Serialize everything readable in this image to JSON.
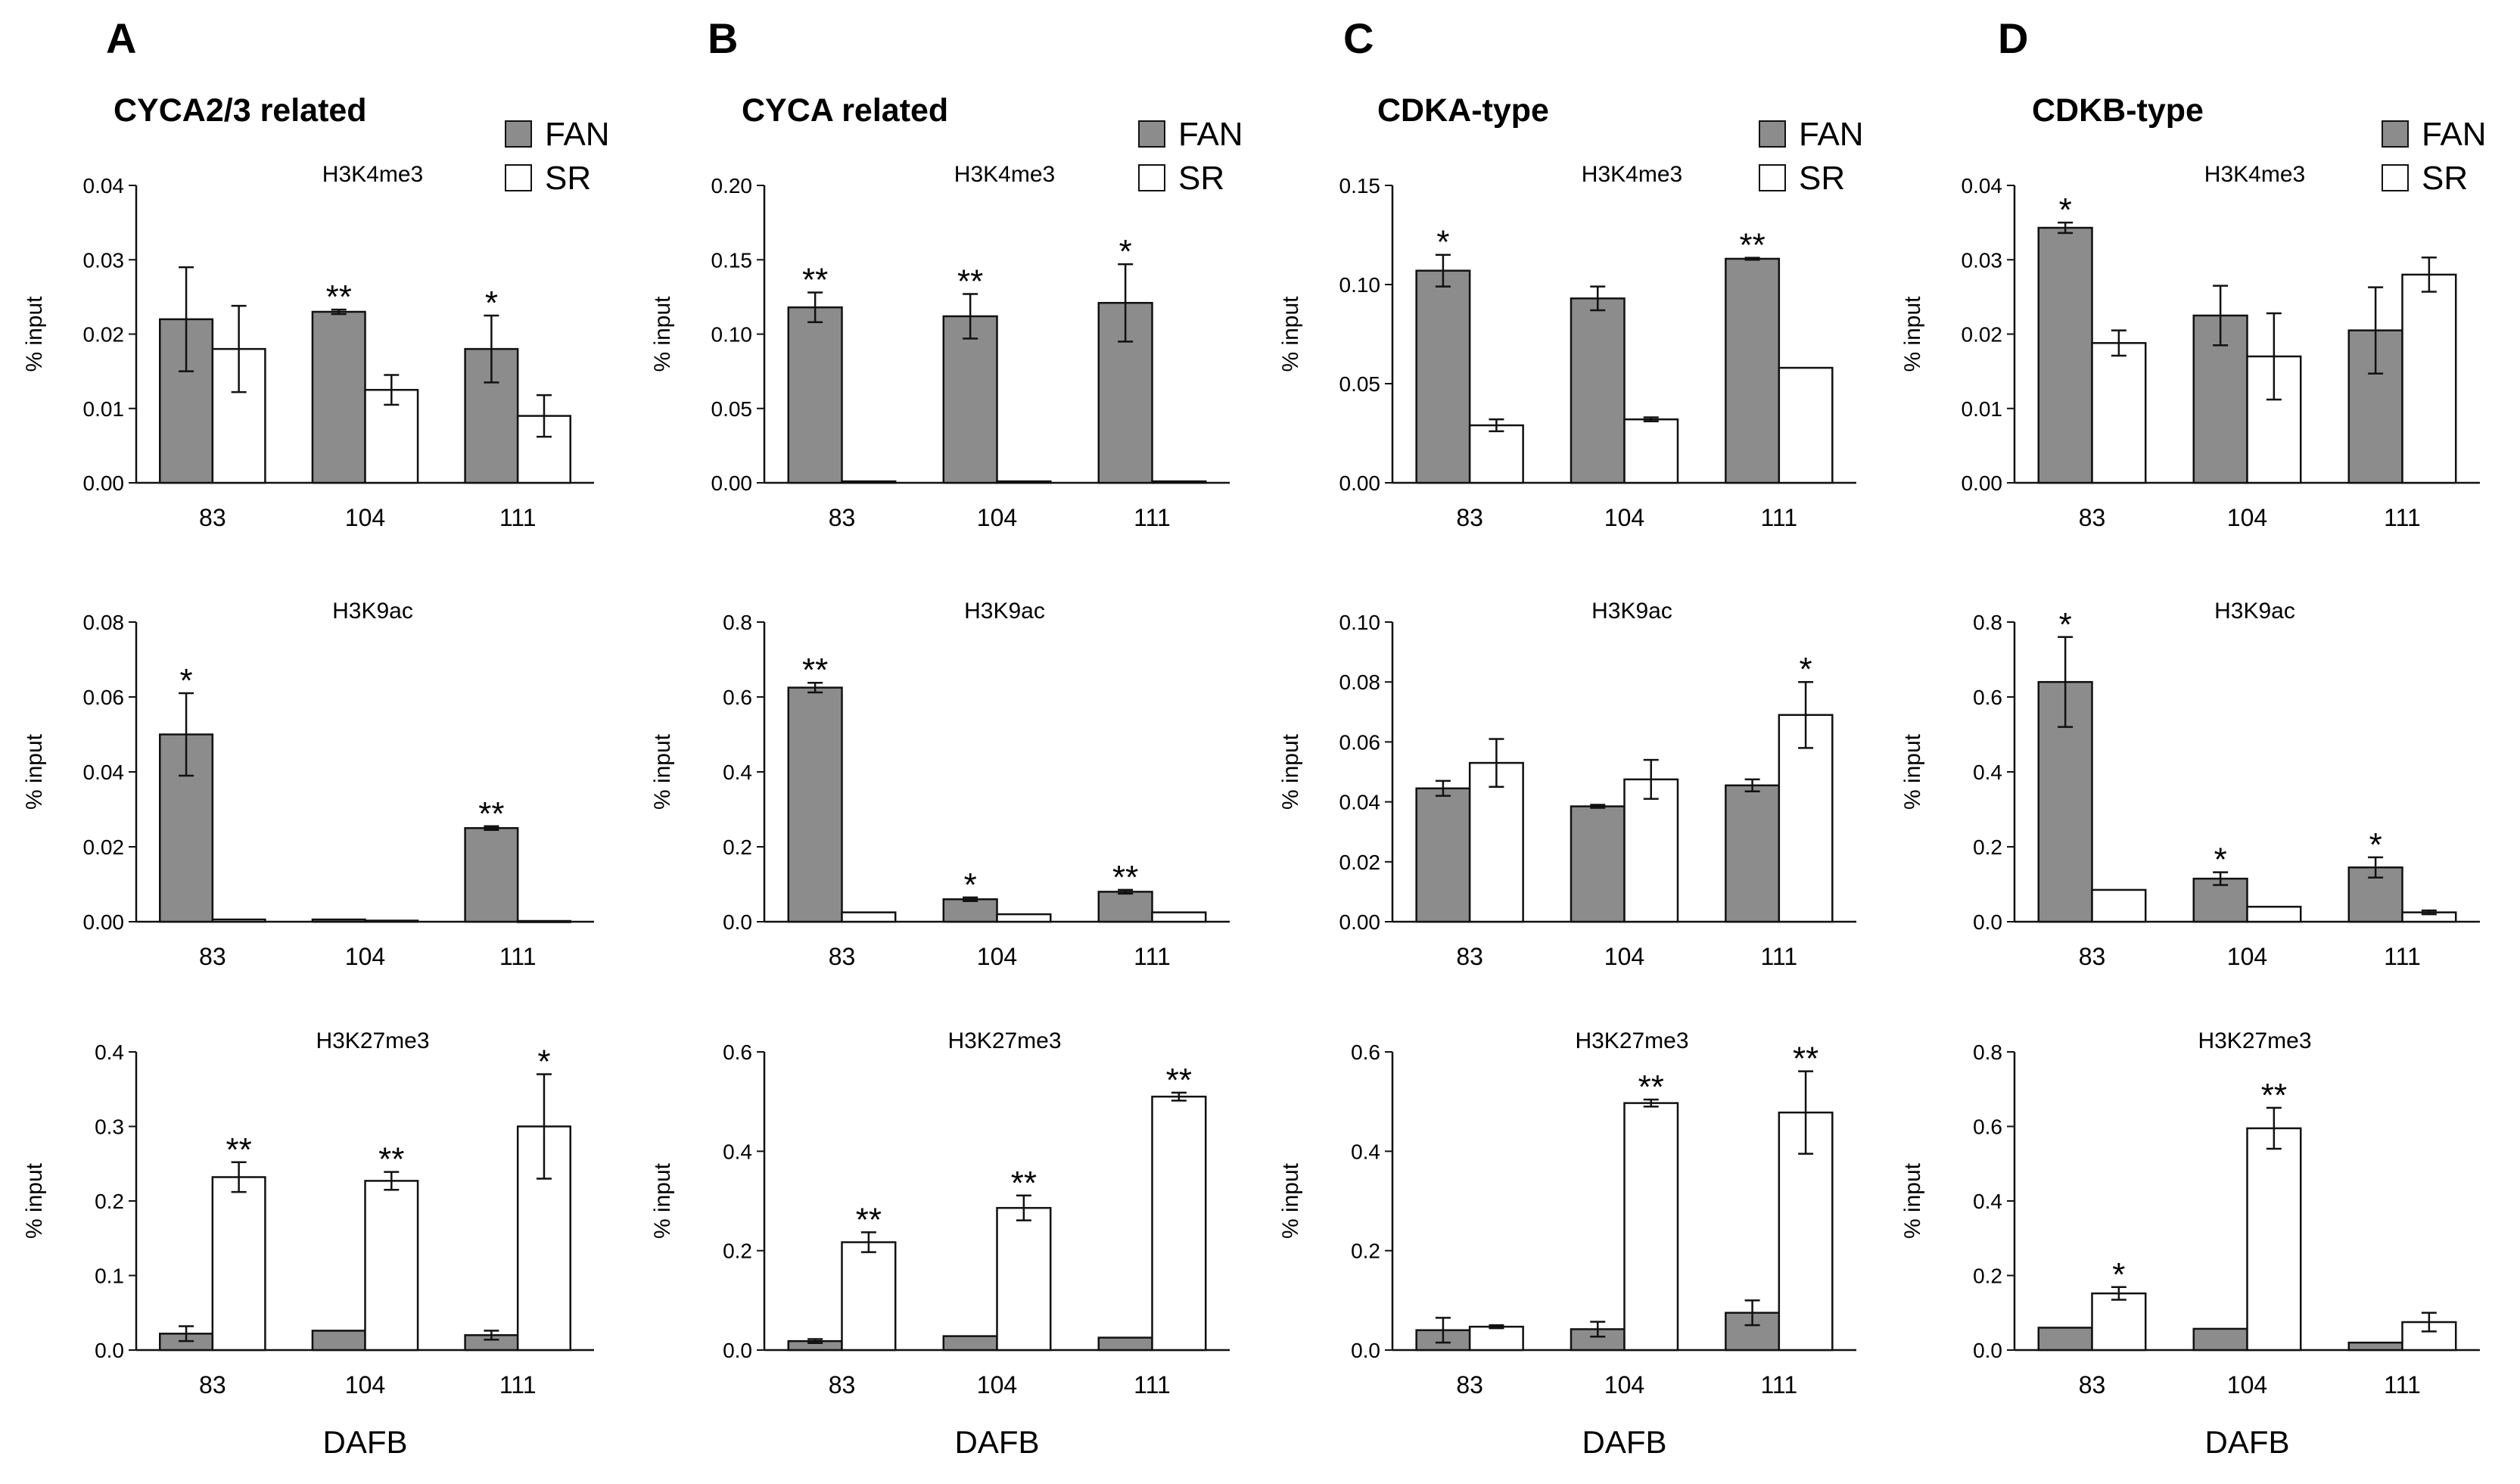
{
  "legend": {
    "fan_label": "FAN",
    "sr_label": "SR"
  },
  "shared": {
    "y_label": "% input",
    "x_label": "DAFB",
    "categories": [
      "83",
      "104",
      "111"
    ],
    "series_names": [
      "FAN",
      "SR"
    ]
  },
  "colors": {
    "fan": "#8c8c8c",
    "sr": "#ffffff",
    "stroke": "#111111"
  },
  "panels": [
    {
      "letter": "A",
      "title": "CYCA2/3 related"
    },
    {
      "letter": "B",
      "title": "CYCA related"
    },
    {
      "letter": "C",
      "title": "CDKA-type"
    },
    {
      "letter": "D",
      "title": "CDKB-type"
    }
  ],
  "chart_data": [
    {
      "type": "bar",
      "panel": "A",
      "title": "H3K4me3",
      "ylabel": "% input",
      "categories": [
        "83",
        "104",
        "111"
      ],
      "ylim": [
        0,
        0.04
      ],
      "yticks": [
        "0.00",
        "0.01",
        "0.02",
        "0.03",
        "0.04"
      ],
      "series": [
        {
          "name": "FAN",
          "values": [
            0.022,
            0.023,
            0.018
          ],
          "errors": [
            0.007,
            0.0003,
            0.0045
          ]
        },
        {
          "name": "SR",
          "values": [
            0.018,
            0.0125,
            0.009
          ],
          "errors": [
            0.0058,
            0.002,
            0.0028
          ]
        }
      ],
      "annotations": [
        "",
        "**",
        "*"
      ]
    },
    {
      "type": "bar",
      "panel": "A",
      "title": "H3K9ac",
      "ylabel": "% input",
      "categories": [
        "83",
        "104",
        "111"
      ],
      "ylim": [
        0,
        0.08
      ],
      "yticks": [
        "0.00",
        "0.02",
        "0.04",
        "0.06",
        "0.08"
      ],
      "series": [
        {
          "name": "FAN",
          "values": [
            0.05,
            0.0006,
            0.025
          ],
          "errors": [
            0.011,
            0,
            0.0005
          ]
        },
        {
          "name": "SR",
          "values": [
            0.0006,
            0.0003,
            0.0002
          ],
          "errors": [
            0,
            0,
            0
          ]
        }
      ],
      "annotations": [
        "*",
        "",
        "**"
      ]
    },
    {
      "type": "bar",
      "panel": "A",
      "title": "H3K27me3",
      "ylabel": "% input",
      "categories": [
        "83",
        "104",
        "111"
      ],
      "ylim": [
        0,
        0.4
      ],
      "yticks": [
        "0.0",
        "0.1",
        "0.2",
        "0.3",
        "0.4"
      ],
      "series": [
        {
          "name": "FAN",
          "values": [
            0.022,
            0.026,
            0.02
          ],
          "errors": [
            0.01,
            0,
            0.006
          ]
        },
        {
          "name": "SR",
          "values": [
            0.232,
            0.227,
            0.3
          ],
          "errors": [
            0.02,
            0.012,
            0.07
          ]
        }
      ],
      "annotations": [
        "**",
        "**",
        "*"
      ]
    },
    {
      "type": "bar",
      "panel": "B",
      "title": "H3K4me3",
      "ylabel": "% input",
      "categories": [
        "83",
        "104",
        "111"
      ],
      "ylim": [
        0,
        0.2
      ],
      "yticks": [
        "0.00",
        "0.05",
        "0.10",
        "0.15",
        "0.20"
      ],
      "series": [
        {
          "name": "FAN",
          "values": [
            0.118,
            0.112,
            0.121
          ],
          "errors": [
            0.01,
            0.015,
            0.026
          ]
        },
        {
          "name": "SR",
          "values": [
            0.001,
            0.001,
            0.001
          ],
          "errors": [
            0,
            0,
            0
          ]
        }
      ],
      "annotations": [
        "**",
        "**",
        "*"
      ]
    },
    {
      "type": "bar",
      "panel": "B",
      "title": "H3K9ac",
      "ylabel": "% input",
      "categories": [
        "83",
        "104",
        "111"
      ],
      "ylim": [
        0,
        0.8
      ],
      "yticks": [
        "0.0",
        "0.2",
        "0.4",
        "0.6",
        "0.8"
      ],
      "series": [
        {
          "name": "FAN",
          "values": [
            0.625,
            0.06,
            0.08
          ],
          "errors": [
            0.013,
            0.005,
            0.005
          ]
        },
        {
          "name": "SR",
          "values": [
            0.025,
            0.02,
            0.025
          ],
          "errors": [
            0,
            0,
            0
          ]
        }
      ],
      "annotations": [
        "**",
        "*",
        "**"
      ]
    },
    {
      "type": "bar",
      "panel": "B",
      "title": "H3K27me3",
      "ylabel": "% input",
      "categories": [
        "83",
        "104",
        "111"
      ],
      "ylim": [
        0,
        0.6
      ],
      "yticks": [
        "0.0",
        "0.2",
        "0.4",
        "0.6"
      ],
      "series": [
        {
          "name": "FAN",
          "values": [
            0.018,
            0.028,
            0.025
          ],
          "errors": [
            0.004,
            0,
            0
          ]
        },
        {
          "name": "SR",
          "values": [
            0.217,
            0.286,
            0.51
          ],
          "errors": [
            0.02,
            0.025,
            0.008
          ]
        }
      ],
      "annotations": [
        "**",
        "**",
        "**"
      ]
    },
    {
      "type": "bar",
      "panel": "C",
      "title": "H3K4me3",
      "ylabel": "% input",
      "categories": [
        "83",
        "104",
        "111"
      ],
      "ylim": [
        0,
        0.15
      ],
      "yticks": [
        "0.00",
        "0.05",
        "0.10",
        "0.15"
      ],
      "series": [
        {
          "name": "FAN",
          "values": [
            0.107,
            0.093,
            0.113
          ],
          "errors": [
            0.008,
            0.006,
            0.0005
          ]
        },
        {
          "name": "SR",
          "values": [
            0.029,
            0.032,
            0.058
          ],
          "errors": [
            0.003,
            0.001,
            0
          ]
        }
      ],
      "annotations": [
        "*",
        "",
        "**"
      ]
    },
    {
      "type": "bar",
      "panel": "C",
      "title": "H3K9ac",
      "ylabel": "% input",
      "categories": [
        "83",
        "104",
        "111"
      ],
      "ylim": [
        0,
        0.1
      ],
      "yticks": [
        "0.00",
        "0.02",
        "0.04",
        "0.06",
        "0.08",
        "0.10"
      ],
      "series": [
        {
          "name": "FAN",
          "values": [
            0.0445,
            0.0385,
            0.0455
          ],
          "errors": [
            0.0025,
            0.0005,
            0.002
          ]
        },
        {
          "name": "SR",
          "values": [
            0.053,
            0.0475,
            0.069
          ],
          "errors": [
            0.008,
            0.0065,
            0.011
          ]
        }
      ],
      "annotations": [
        "",
        "",
        "*"
      ]
    },
    {
      "type": "bar",
      "panel": "C",
      "title": "H3K27me3",
      "ylabel": "% input",
      "categories": [
        "83",
        "104",
        "111"
      ],
      "ylim": [
        0,
        0.6
      ],
      "yticks": [
        "0.0",
        "0.2",
        "0.4",
        "0.6"
      ],
      "series": [
        {
          "name": "FAN",
          "values": [
            0.04,
            0.042,
            0.075
          ],
          "errors": [
            0.025,
            0.015,
            0.025
          ]
        },
        {
          "name": "SR",
          "values": [
            0.047,
            0.497,
            0.478
          ],
          "errors": [
            0.003,
            0.007,
            0.083
          ]
        }
      ],
      "annotations": [
        "",
        "**",
        "**"
      ]
    },
    {
      "type": "bar",
      "panel": "D",
      "title": "H3K4me3",
      "ylabel": "% input",
      "categories": [
        "83",
        "104",
        "111"
      ],
      "ylim": [
        0,
        0.04
      ],
      "yticks": [
        "0.00",
        "0.01",
        "0.02",
        "0.03",
        "0.04"
      ],
      "series": [
        {
          "name": "FAN",
          "values": [
            0.0343,
            0.0225,
            0.0205
          ],
          "errors": [
            0.0007,
            0.004,
            0.0058
          ]
        },
        {
          "name": "SR",
          "values": [
            0.0188,
            0.017,
            0.028
          ],
          "errors": [
            0.0017,
            0.0058,
            0.0023
          ]
        }
      ],
      "annotations": [
        "*",
        "",
        ""
      ]
    },
    {
      "type": "bar",
      "panel": "D",
      "title": "H3K9ac",
      "ylabel": "% input",
      "categories": [
        "83",
        "104",
        "111"
      ],
      "ylim": [
        0,
        0.8
      ],
      "yticks": [
        "0.0",
        "0.2",
        "0.4",
        "0.6",
        "0.8"
      ],
      "series": [
        {
          "name": "FAN",
          "values": [
            0.64,
            0.115,
            0.145
          ],
          "errors": [
            0.12,
            0.017,
            0.027
          ]
        },
        {
          "name": "SR",
          "values": [
            0.085,
            0.04,
            0.025
          ],
          "errors": [
            0,
            0,
            0.005
          ]
        }
      ],
      "annotations": [
        "*",
        "*",
        "*"
      ]
    },
    {
      "type": "bar",
      "panel": "D",
      "title": "H3K27me3",
      "ylabel": "% input",
      "categories": [
        "83",
        "104",
        "111"
      ],
      "ylim": [
        0,
        0.8
      ],
      "yticks": [
        "0.0",
        "0.2",
        "0.4",
        "0.6",
        "0.8"
      ],
      "series": [
        {
          "name": "FAN",
          "values": [
            0.06,
            0.057,
            0.02
          ],
          "errors": [
            0,
            0,
            0
          ]
        },
        {
          "name": "SR",
          "values": [
            0.152,
            0.595,
            0.075
          ],
          "errors": [
            0.017,
            0.055,
            0.025
          ]
        }
      ],
      "annotations": [
        "*",
        "**",
        ""
      ]
    }
  ]
}
